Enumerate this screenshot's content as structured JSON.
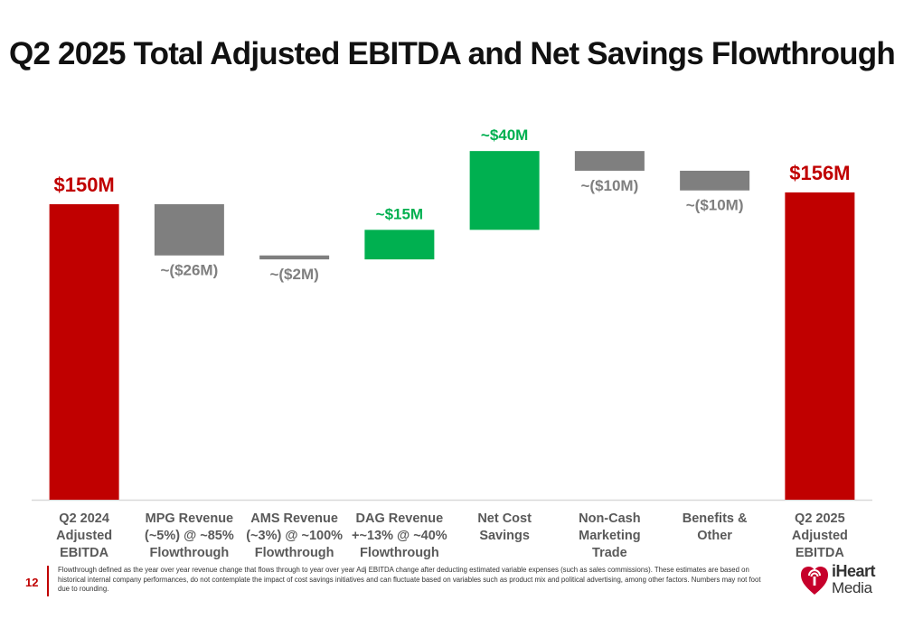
{
  "title": "Q2 2025 Total Adjusted EBITDA and Net Savings Flowthrough",
  "colors": {
    "total": "#c00000",
    "negative": "#7f7f7f",
    "positive": "#00b050",
    "baseline": "#d9d9d9"
  },
  "chart_data": {
    "type": "waterfall",
    "categories": [
      [
        "Q2 2024",
        "Adjusted",
        "EBITDA"
      ],
      [
        "MPG Revenue",
        "(~5%) @ ~85%",
        "Flowthrough"
      ],
      [
        "AMS Revenue",
        "(~3%) @ ~100%",
        "Flowthrough"
      ],
      [
        "DAG Revenue",
        "+~13% @ ~40%",
        "Flowthrough"
      ],
      [
        "Net Cost",
        "Savings"
      ],
      [
        "Non-Cash",
        "Marketing",
        "Trade"
      ],
      [
        "Benefits &",
        "Other"
      ],
      [
        "Q2 2025",
        "Adjusted",
        "EBITDA"
      ]
    ],
    "steps": [
      {
        "kind": "total",
        "value": 150,
        "label": "$150M"
      },
      {
        "kind": "delta",
        "value": -26,
        "label": "~($26M)"
      },
      {
        "kind": "delta",
        "value": -2,
        "label": "~($2M)"
      },
      {
        "kind": "delta",
        "value": 15,
        "label": "~$15M"
      },
      {
        "kind": "delta",
        "value": 40,
        "label": "~$40M"
      },
      {
        "kind": "delta",
        "value": -10,
        "label": "~($10M)"
      },
      {
        "kind": "delta",
        "value": -10,
        "label": "~($10M)"
      },
      {
        "kind": "total",
        "value": 156,
        "label": "$156M"
      }
    ],
    "ylim": [
      0,
      180
    ]
  },
  "footer": {
    "page_number": "12",
    "footnote": "Flowthrough defined as the year over year revenue change that flows through to year over year Adj EBITDA change after deducting estimated variable expenses (such as sales commissions). These estimates are based on historical internal company performances, do not contemplate the impact of cost savings initiatives and can fluctuate based on variables such as product mix and political advertising, among other factors. Numbers may not foot due to rounding.",
    "logo_line1": "iHeart",
    "logo_line2": "Media"
  }
}
